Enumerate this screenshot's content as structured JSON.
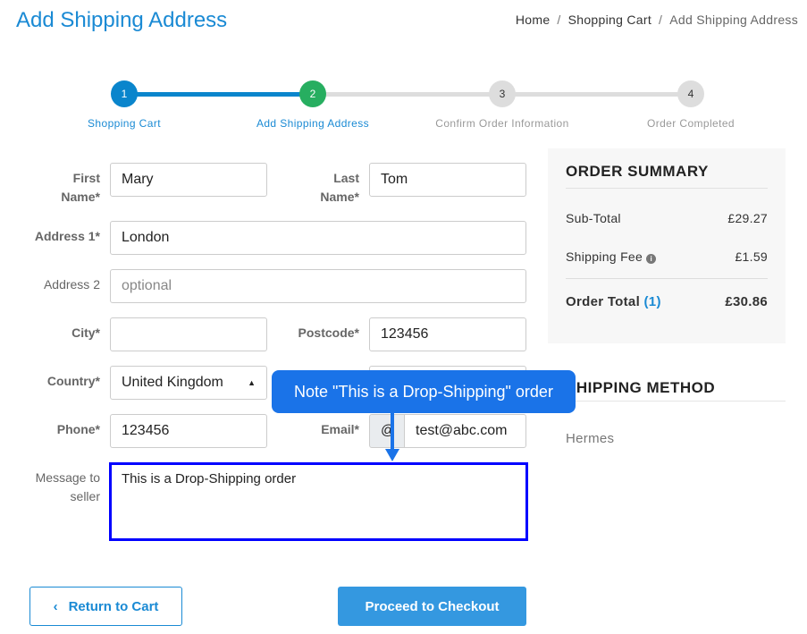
{
  "page_title": "Add Shipping Address",
  "breadcrumb": [
    "Home",
    "Shopping Cart",
    "Add Shipping Address"
  ],
  "steps": [
    {
      "num": "1",
      "label": "Shopping Cart",
      "state": "done"
    },
    {
      "num": "2",
      "label": "Add Shipping Address",
      "state": "active"
    },
    {
      "num": "3",
      "label": "Confirm Order Information",
      "state": "pending"
    },
    {
      "num": "4",
      "label": "Order Completed",
      "state": "pending"
    }
  ],
  "form": {
    "first_name_label": "First Name*",
    "first_name": "Mary",
    "last_name_label": "Last Name*",
    "last_name": "Tom",
    "address1_label": "Address 1*",
    "address1": "London",
    "address2_label": "Address 2",
    "address2_placeholder": "optional",
    "city_label": "City*",
    "city": "",
    "postcode_label": "Postcode*",
    "postcode": "123456",
    "country_label": "Country*",
    "country": "United Kingdom",
    "phone_label": "Phone*",
    "phone": "123456",
    "email_label": "Email*",
    "email_prefix": "@",
    "email": "test@abc.com",
    "message_label": "Message to seller",
    "message": "This is a Drop-Shipping order"
  },
  "summary": {
    "title": "ORDER SUMMARY",
    "subtotal_label": "Sub-Total",
    "subtotal": "£29.27",
    "shipping_label": "Shipping Fee",
    "shipping": "£1.59",
    "total_label": "Order Total",
    "total_count": "(1)",
    "total": "£30.86"
  },
  "shipping_method": {
    "title": "SHIPPING METHOD",
    "value": "Hermes"
  },
  "tooltip": "Note \"This is a Drop-Shipping\" order",
  "buttons": {
    "return": "Return to Cart",
    "proceed": "Proceed to Checkout"
  },
  "colors": {
    "primary": "#1a8ad4",
    "step_active": "#27ae60",
    "tooltip": "#1a73e8",
    "focus": "#0000ff"
  }
}
